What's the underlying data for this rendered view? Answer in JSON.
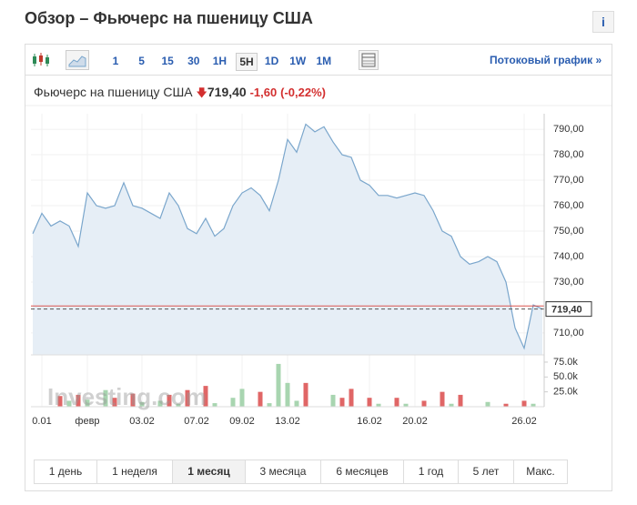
{
  "header": {
    "title": "Обзор – Фьючерс на пшеницу США",
    "info": "i"
  },
  "toolbar": {
    "intervals": [
      "1",
      "5",
      "15",
      "30",
      "1H",
      "5H",
      "1D",
      "1W",
      "1M"
    ],
    "active": "5H",
    "link": "Потоковый график",
    "link_arrow": "»"
  },
  "quote": {
    "name": "Фьючерс на пшеницу США",
    "price": "719,40",
    "change": "-1,60",
    "change_pct": "(-0,22%)"
  },
  "watermark": "Investing.com",
  "chart_data": [
    {
      "type": "line",
      "color": "#7aa6cc",
      "fill": "#e6eef6",
      "ref_line": 720.6,
      "ref_color": "#d9534f",
      "categories": [
        null,
        "0.01",
        null,
        null,
        null,
        null,
        "февр",
        null,
        null,
        null,
        null,
        null,
        "03.02",
        null,
        null,
        null,
        null,
        null,
        "07.02",
        null,
        null,
        null,
        null,
        "09.02",
        null,
        null,
        null,
        null,
        "13.02",
        null,
        null,
        null,
        null,
        null,
        null,
        null,
        null,
        "16.02",
        null,
        null,
        null,
        null,
        "20.02",
        null,
        null,
        null,
        null,
        null,
        null,
        null,
        null,
        null,
        null,
        null,
        "26.02",
        null,
        null
      ],
      "values": [
        749,
        757,
        752,
        754,
        752,
        744,
        765,
        760,
        759,
        760,
        769,
        760,
        759,
        757,
        755,
        765,
        760,
        751,
        749,
        755,
        748,
        751,
        760,
        765,
        767,
        764,
        758,
        770,
        786,
        781,
        792,
        789,
        791,
        785,
        780,
        779,
        770,
        768,
        764,
        764,
        763,
        764,
        765,
        764,
        758,
        750,
        748,
        740,
        737,
        738,
        740,
        738,
        730,
        712,
        704,
        721,
        719.4
      ],
      "ylim": [
        701.4,
        796.1
      ],
      "yticks": [
        {
          "value": 790,
          "label": "790,00"
        },
        {
          "value": 780,
          "label": "780,00"
        },
        {
          "value": 770,
          "label": "770,00"
        },
        {
          "value": 760,
          "label": "760,00"
        },
        {
          "value": 750,
          "label": "750,00"
        },
        {
          "value": 740,
          "label": "740,00"
        },
        {
          "value": 730,
          "label": "730,00"
        },
        {
          "value": 710,
          "label": "710,00"
        }
      ]
    },
    {
      "type": "bar",
      "values": [
        null,
        null,
        null,
        18,
        10,
        20,
        12,
        null,
        28,
        15,
        null,
        22,
        8,
        null,
        10,
        20,
        5,
        28,
        null,
        35,
        6,
        null,
        15,
        30,
        null,
        25,
        6,
        72,
        40,
        10,
        40,
        null,
        null,
        20,
        15,
        30,
        null,
        15,
        5,
        null,
        15,
        5,
        null,
        10,
        null,
        25,
        5,
        20,
        null,
        null,
        8,
        null,
        5,
        null,
        10,
        5,
        null
      ],
      "colors": [
        null,
        null,
        null,
        "#e06666",
        "#a8d5b0",
        "#e06666",
        "#a8d5b0",
        null,
        "#a8d5b0",
        "#e06666",
        null,
        "#e06666",
        "#a8d5b0",
        null,
        "#a8d5b0",
        "#e06666",
        "#a8d5b0",
        "#e06666",
        null,
        "#e06666",
        "#a8d5b0",
        null,
        "#a8d5b0",
        "#a8d5b0",
        null,
        "#e06666",
        "#a8d5b0",
        "#a8d5b0",
        "#a8d5b0",
        "#a8d5b0",
        "#e06666",
        null,
        null,
        "#a8d5b0",
        "#e06666",
        "#e06666",
        null,
        "#e06666",
        "#a8d5b0",
        null,
        "#e06666",
        "#a8d5b0",
        null,
        "#e06666",
        null,
        "#e06666",
        "#a8d5b0",
        "#e06666",
        null,
        null,
        "#a8d5b0",
        null,
        "#e06666",
        null,
        "#e06666",
        "#a8d5b0",
        null
      ],
      "ylim": [
        0,
        82.6
      ],
      "yticks": [
        {
          "value": 75,
          "label": "75.0k"
        },
        {
          "value": 50,
          "label": "50.0k"
        },
        {
          "value": 25,
          "label": "25.0k"
        }
      ]
    }
  ],
  "ranges": {
    "items": [
      "1 день",
      "1 неделя",
      "1 месяц",
      "3 месяца",
      "6 месяцев",
      "1 год",
      "5 лет",
      "Макс."
    ],
    "active": "1 месяц"
  }
}
